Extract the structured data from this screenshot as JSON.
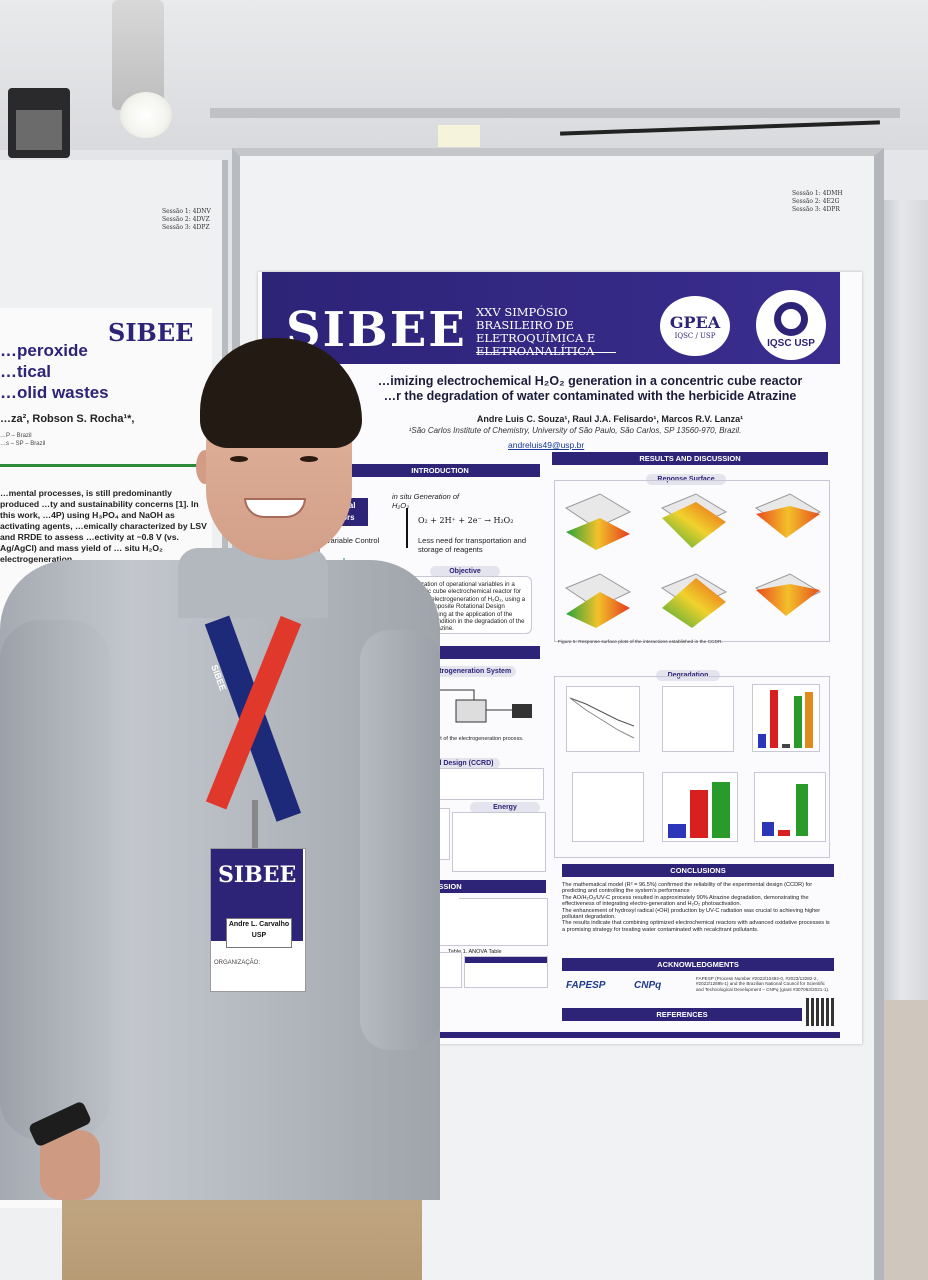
{
  "poster": {
    "session_labels": [
      "Sessão 1: 4DMH",
      "Sessão 2: 4E2G",
      "Sessão 3: 4DPR"
    ],
    "logo": "SIBEE",
    "symposium": "XXV SIMPÓSIO BRASILEIRO DE ELETROQUÍMICA E ELETROANALÍTICA",
    "gpea": "GPEA",
    "gpea_sub": "IQSC / USP",
    "iqsc": "IQSC USP",
    "title_line1": "…imizing electrochemical H₂O₂ generation in a concentric cube reactor",
    "title_line2": "…r the degradation of water contaminated with the herbicide Atrazine",
    "authors": "Andre Luis C. Souza¹, Raul J.A. Felisardo¹, Marcos R.V. Lanza¹",
    "affiliation": "¹São Carlos Institute of Chemistry, University of São Paulo, São Carlos, SP 13560-970, Brazil.",
    "email": "andreluis49@usp.br",
    "introduction": "INTRODUCTION",
    "insitu": "in situ Generation of H₂O₂",
    "reaction": "O₂ + 2H⁺ + 2e⁻ → H₂O₂",
    "less_need": "Less need for transportation and storage of reagents",
    "variable_control": "Variable Control",
    "chemical_reactors": "…mical …ctors",
    "objective": "Objective",
    "objective_text": "Optimization of operational variables in a concentric cube electrochemical reactor for the in situ electrogeneration of H₂O₂, using a Central Composite Rotational Design (CCRD), aiming at the application of the optimized condition in the degradation of the herbicide Atrazine.",
    "methods": "…HODS",
    "electrogeneration": "Electrogeneration System",
    "ccrd": "…onal Design (CCRD)",
    "energy": "Energy Consumption",
    "discussion": "…CUSSION",
    "model": "Model",
    "anova": "Table 1. ANOVA Table",
    "results": "RESULTS AND DISCUSSION",
    "response_surface": "Reponse Surface",
    "degradation": "Degradation",
    "conclusions": "CONCLUSIONS",
    "conclusion_items": [
      "The mathematical model (R² = 96.5%) confirmed the reliability of the experimental design (CCDR) for predicting and controlling the system's performance",
      "The AO/H₂O₂/UV-C process resulted in approximately 90% Atrazine degradation, demonstrating the effectiveness of integrating electro-generation and H₂O₂ photoactivation.",
      "The enhancement of hydroxyl radical (•OH) production by UV-C radiation was crucial to achieving higher pollutant degradation.",
      "The results indicate that combining optimized electrochemical reactors with advanced oxidative processes is a promising strategy for treating water contaminated with recalcitrant pollutants."
    ],
    "acknowledgments": "ACKNOWLEDGMENTS",
    "fapesp": "FAPESP",
    "cnpq": "CNPq",
    "ack_text": "FAPESP (Process Number #2023/10492-0, #2023/13282-2, #2022/12895-1) and the Brazilian National Council for Scientific and Technological Development – CNPq (grant #307063/2021-1).",
    "references": "REFERENCES"
  },
  "left_poster": {
    "logo": "SIBEE",
    "session_labels": [
      "Sessão 1: 4DNV",
      "Sessão 2: 4DVZ",
      "Sessão 3: 4DPZ"
    ],
    "title_lines": [
      "…peroxide",
      "…tical",
      "…olid wastes"
    ],
    "authors": "…za², Robson S. Rocha¹*,",
    "affil_lines": [
      "…P – Brazil",
      "…s – SP – Brazil"
    ],
    "body": "…mental processes, is still predominantly produced …ty and sustainability concerns [1]. In this work, …4P) using H₃PO₄ and NaOH as activating agents, …emically characterized by LSV and RRDE to assess …ectivity at −0.8 V (vs. Ag/AgCl) and mass yield of … situ H₂O₂ electrogeneration."
  },
  "badge": {
    "logo": "SIBEE",
    "name": "Andre L. Carvalho",
    "affiliation": "USP",
    "org_label": "ORGANIZAÇÃO:"
  },
  "lanyard_text": "SIBEE",
  "colors": {
    "poster_navy": "#2d2377",
    "lanyard_red": "#e0392c",
    "lanyard_blue": "#1d2a7a"
  }
}
